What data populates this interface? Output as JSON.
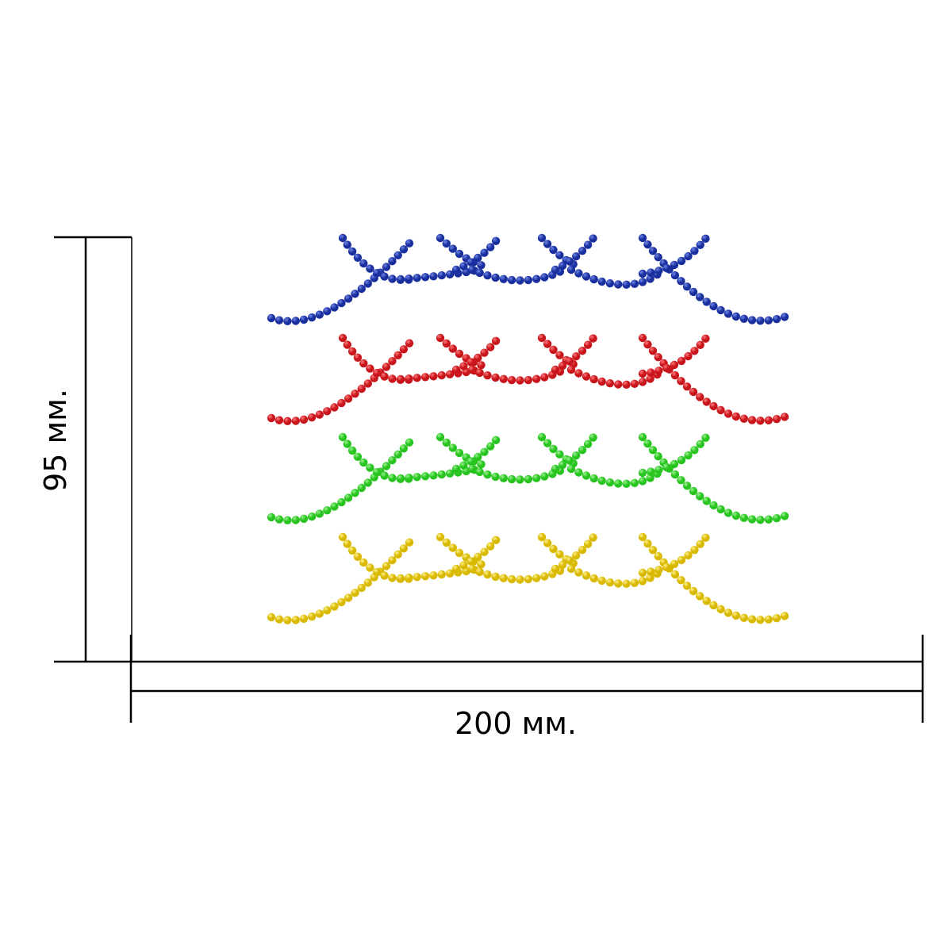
{
  "dimensions": {
    "width_label": "200 мм.",
    "height_label": "95 мм."
  },
  "garlands": [
    {
      "name": "blue",
      "color": "#1a2f9e",
      "highlight": "#6f86e6"
    },
    {
      "name": "red",
      "color": "#c8141b",
      "highlight": "#ff7a7a"
    },
    {
      "name": "green",
      "color": "#27c41f",
      "highlight": "#9af28f"
    },
    {
      "name": "yellow",
      "color": "#d9b800",
      "highlight": "#fff18a"
    }
  ]
}
